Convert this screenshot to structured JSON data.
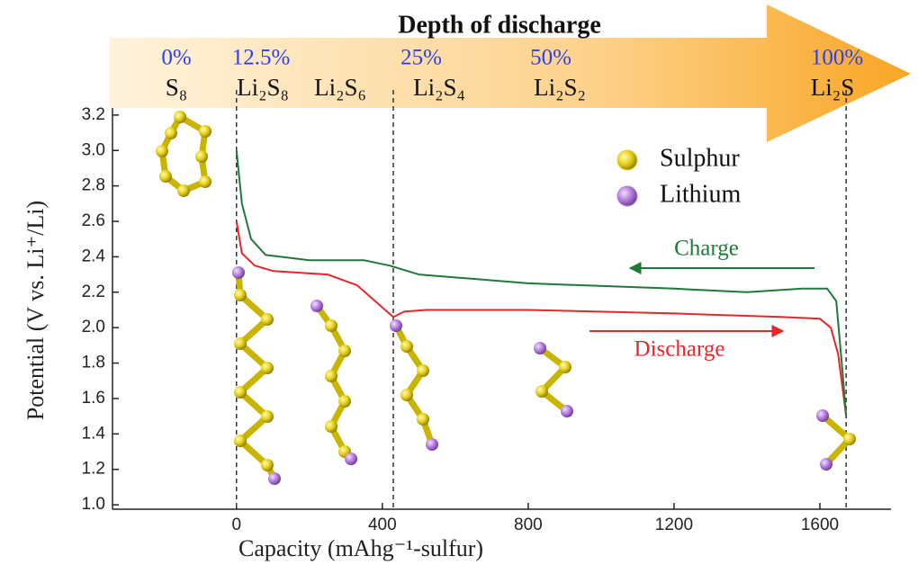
{
  "chart_data": {
    "type": "line",
    "title": "Depth of discharge",
    "depth_labels": [
      "0%",
      "12.5%",
      "25%",
      "50%",
      "100%"
    ],
    "species": [
      "S₈",
      "Li₂S₈",
      "Li₂S₆",
      "Li₂S₄",
      "Li₂S₂",
      "Li₂S"
    ],
    "x_label": "Capacity (mAhg⁻¹-sulfur)",
    "y_label": "Potential (V vs. Li⁺/Li)",
    "xlim": [
      -340,
      1795
    ],
    "ylim": [
      0.975,
      3.24
    ],
    "xticks": [
      0,
      400,
      800,
      1200,
      1600
    ],
    "yticks": [
      {
        "value": 1,
        "label": "1.0"
      },
      1.2,
      1.4,
      1.6,
      1.8,
      {
        "value": 2,
        "label": "2.0"
      },
      2.2,
      2.4,
      2.6,
      2.8,
      {
        "value": 3,
        "label": "3.0"
      },
      3.2
    ],
    "reference_lines": [
      0,
      430,
      1672
    ],
    "atoms": [
      {
        "name": "Sulphur",
        "color": "#e8d21c"
      },
      {
        "name": "Lithium",
        "color": "#b77fe0"
      }
    ],
    "series": [
      {
        "name": "Discharge",
        "color": "#e8262a",
        "x": [
          0,
          15,
          50,
          100,
          250,
          330,
          380,
          430,
          460,
          520,
          800,
          1200,
          1500,
          1600,
          1630,
          1650,
          1672
        ],
        "values": [
          2.6,
          2.42,
          2.35,
          2.32,
          2.3,
          2.24,
          2.15,
          2.06,
          2.09,
          2.1,
          2.1,
          2.08,
          2.06,
          2.05,
          2.0,
          1.85,
          1.5
        ]
      },
      {
        "name": "Charge",
        "color": "#1e7a3a",
        "x": [
          0,
          15,
          40,
          80,
          200,
          350,
          420,
          500,
          800,
          1200,
          1400,
          1550,
          1620,
          1645,
          1660,
          1672
        ],
        "values": [
          3.0,
          2.7,
          2.5,
          2.41,
          2.38,
          2.38,
          2.35,
          2.3,
          2.25,
          2.22,
          2.2,
          2.22,
          2.22,
          2.15,
          1.8,
          1.5
        ]
      }
    ]
  }
}
